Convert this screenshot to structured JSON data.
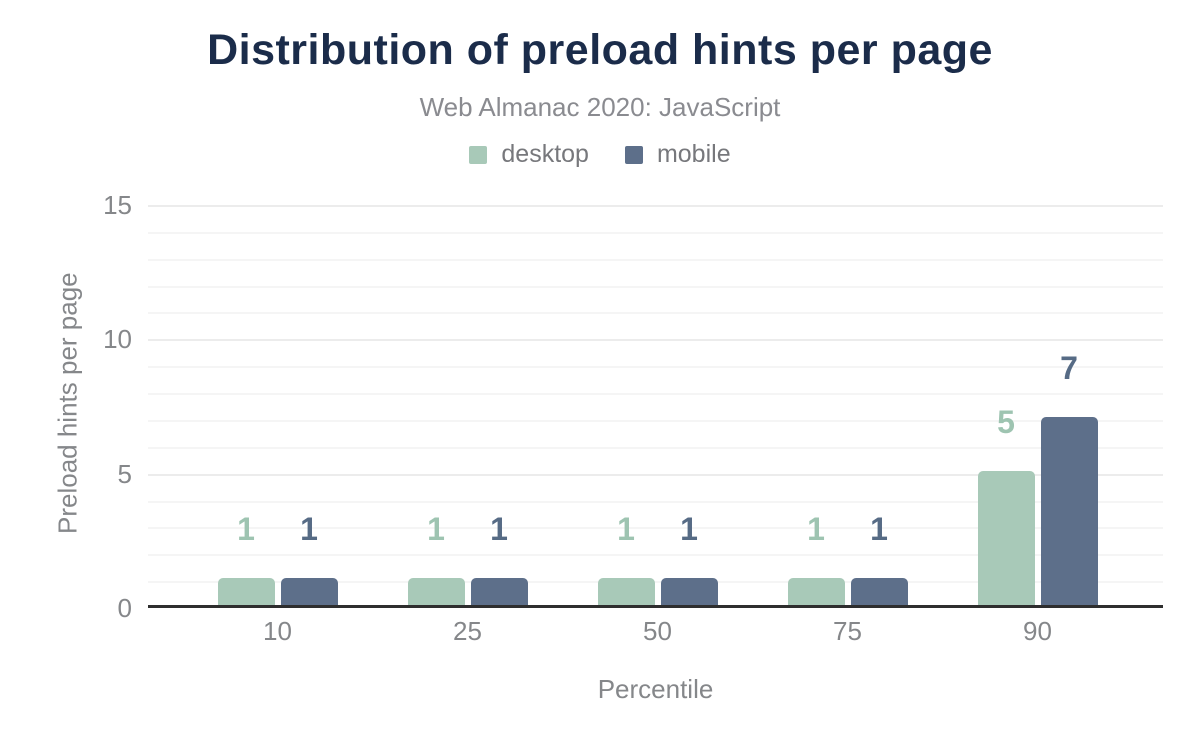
{
  "chart_data": {
    "type": "bar",
    "title": "Distribution of preload hints per page",
    "subtitle": "Web Almanac 2020: JavaScript",
    "xlabel": "Percentile",
    "ylabel": "Preload hints per page",
    "categories": [
      "10",
      "25",
      "50",
      "75",
      "90"
    ],
    "series": [
      {
        "name": "desktop",
        "color": "#a8c9b8",
        "label_color": "#9ec4b1",
        "values": [
          1,
          1,
          1,
          1,
          5
        ]
      },
      {
        "name": "mobile",
        "color": "#5d6f8a",
        "label_color": "#566b85",
        "values": [
          1,
          1,
          1,
          1,
          7
        ]
      }
    ],
    "ylim": [
      0,
      15
    ],
    "yticks": [
      0,
      5,
      10,
      15
    ],
    "grid": "horizontal minor every 1 unit, major every 5 units",
    "legend_position": "top",
    "colors": {
      "title": "#1b2c4a",
      "subtitle": "#8a8b90",
      "axis_text": "#85878a",
      "axis_line": "#2e2e2e"
    }
  }
}
